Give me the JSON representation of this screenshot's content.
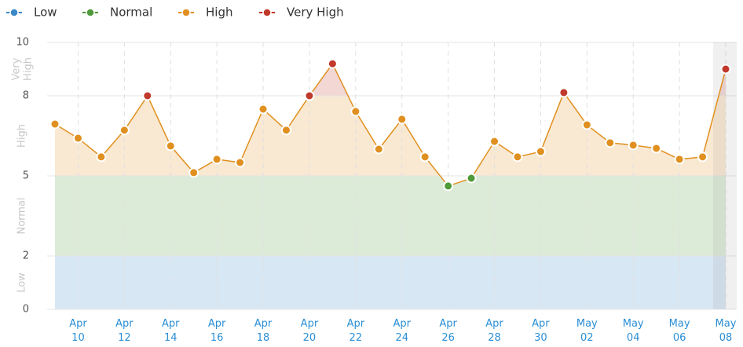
{
  "chart_data": {
    "type": "line",
    "categories": [
      null,
      "Apr 10",
      null,
      "Apr 12",
      null,
      "Apr 14",
      null,
      "Apr 16",
      null,
      "Apr 18",
      null,
      "Apr 20",
      null,
      "Apr 22",
      null,
      "Apr 24",
      null,
      "Apr 26",
      null,
      "Apr 28",
      null,
      "Apr 30",
      null,
      "May 02",
      null,
      "May 04",
      null,
      "May 06",
      null,
      "May 08"
    ],
    "values": [
      6.94,
      6.41,
      5.71,
      6.71,
      8.0,
      6.12,
      5.12,
      5.62,
      5.5,
      7.5,
      6.71,
      8.0,
      9.2,
      7.41,
      6.0,
      7.12,
      5.71,
      4.62,
      4.91,
      6.29,
      5.71,
      5.91,
      8.12,
      6.91,
      6.24,
      6.15,
      6.03,
      5.62,
      5.71,
      9.0
    ],
    "line_color": "#e09020",
    "bands": [
      {
        "name": "Low",
        "color": "#3b88c8",
        "range": [
          0,
          2
        ]
      },
      {
        "name": "Normal",
        "color": "#4f9a3a",
        "range": [
          2,
          5
        ]
      },
      {
        "name": "High",
        "color": "#e09020",
        "range": [
          5,
          8
        ]
      },
      {
        "name": "Very High",
        "color": "#c0392b",
        "range": [
          8,
          10
        ]
      }
    ],
    "ylim": [
      0,
      10
    ],
    "yticks": [
      0,
      2,
      5,
      8,
      10
    ],
    "grid": true
  }
}
